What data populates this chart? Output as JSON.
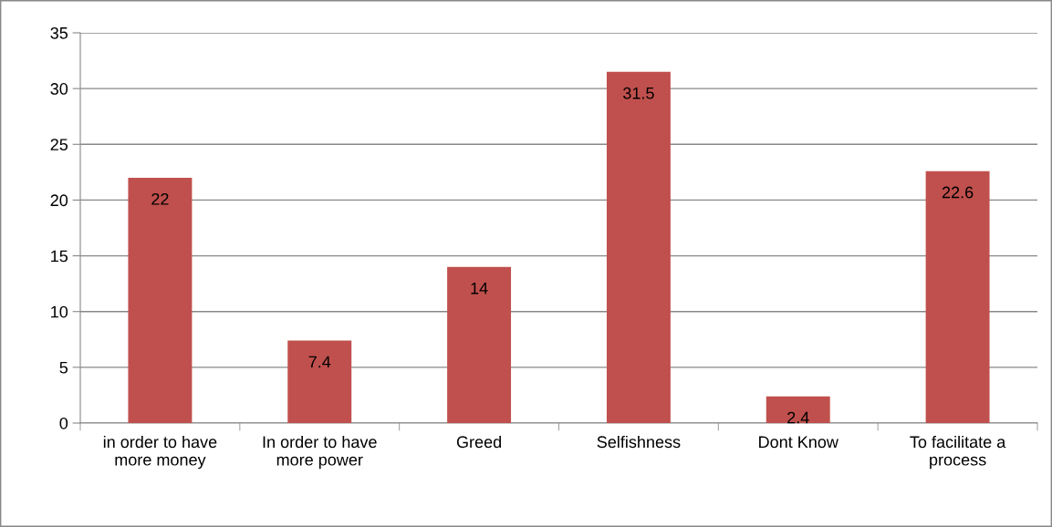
{
  "chart_data": {
    "type": "bar",
    "categories": [
      "in order to have\nmore money",
      "In order to have\nmore power",
      "Greed",
      "Selfishness",
      "Dont Know",
      "To facilitate a\nprocess"
    ],
    "values": [
      22,
      7.4,
      14,
      31.5,
      2.4,
      22.6
    ],
    "color": "#c0504d",
    "ylim": [
      0,
      35
    ],
    "yticks": [
      0,
      5,
      10,
      15,
      20,
      25,
      30,
      35
    ],
    "grid": "y",
    "data_labels": true
  }
}
